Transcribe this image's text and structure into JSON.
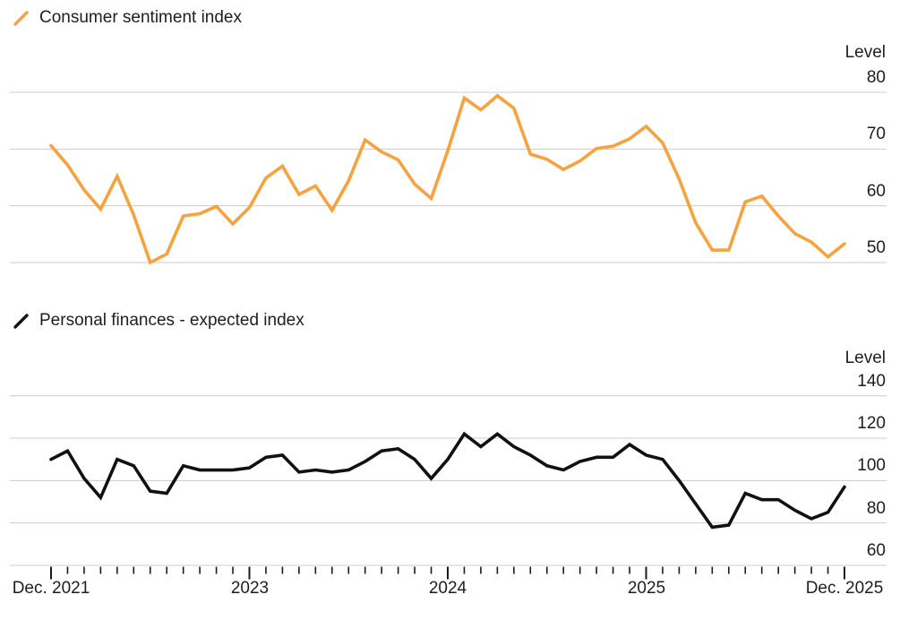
{
  "chart_data": [
    {
      "type": "line",
      "title": "Consumer sentiment index",
      "legend": {
        "label": "Consumer sentiment index",
        "marker_icon": "diagonal-line-icon",
        "color": "#F7A23C"
      },
      "ylabel": "Level",
      "y_ticks": [
        80,
        70,
        60,
        50
      ],
      "ylim": [
        47,
        83
      ],
      "grid": "horizontal",
      "legend_position": "top-left",
      "series": [
        {
          "name": "Consumer sentiment index",
          "color": "#F7A23C",
          "values": [
            70.6,
            67.2,
            62.8,
            59.4,
            65.2,
            58.4,
            50.0,
            51.5,
            58.2,
            58.6,
            59.9,
            56.8,
            59.7,
            64.9,
            67.0,
            62.0,
            63.5,
            59.2,
            64.4,
            71.6,
            69.5,
            68.1,
            63.8,
            61.3,
            69.7,
            79.0,
            76.9,
            79.4,
            77.2,
            69.1,
            68.2,
            66.4,
            67.9,
            70.1,
            70.5,
            71.8,
            74.0,
            71.1,
            64.7,
            57.0,
            52.2,
            52.2,
            60.7,
            61.7,
            58.2,
            55.1,
            53.6,
            51.0,
            53.3
          ]
        }
      ]
    },
    {
      "type": "line",
      "title": "Personal finances - expected index",
      "legend": {
        "label": "Personal finances - expected index",
        "marker_icon": "diagonal-line-icon",
        "color": "#111111"
      },
      "ylabel": "Level",
      "y_ticks": [
        140,
        120,
        100,
        80,
        60
      ],
      "ylim": [
        60,
        144
      ],
      "grid": "horizontal",
      "legend_position": "top-left",
      "series": [
        {
          "name": "Personal finances - expected index",
          "color": "#111111",
          "values": [
            110,
            114,
            101,
            92,
            110,
            107,
            95,
            94,
            107,
            105,
            105,
            105,
            106,
            111,
            112,
            104,
            105,
            104,
            105,
            109,
            114,
            115,
            110,
            101,
            110,
            122,
            116,
            122,
            116,
            112,
            107,
            105,
            109,
            111,
            111,
            117,
            112,
            110,
            100,
            89,
            78,
            79,
            94,
            91,
            91,
            86,
            82,
            85,
            97
          ]
        }
      ]
    }
  ],
  "x_axis": {
    "months": [
      "Dec 2021",
      "Jan 2022",
      "Feb 2022",
      "Mar 2022",
      "Apr 2022",
      "May 2022",
      "Jun 2022",
      "Jul 2022",
      "Aug 2022",
      "Sep 2022",
      "Oct 2022",
      "Nov 2022",
      "Dec 2022",
      "Jan 2023",
      "Feb 2023",
      "Mar 2023",
      "Apr 2023",
      "May 2023",
      "Jun 2023",
      "Jul 2023",
      "Aug 2023",
      "Sep 2023",
      "Oct 2023",
      "Nov 2023",
      "Dec 2023",
      "Jan 2024",
      "Feb 2024",
      "Mar 2024",
      "Apr 2024",
      "May 2024",
      "Jun 2024",
      "Jul 2024",
      "Aug 2024",
      "Sep 2024",
      "Oct 2024",
      "Nov 2024",
      "Dec 2024",
      "Jan 2025",
      "Feb 2025",
      "Mar 2025",
      "Apr 2025",
      "May 2025",
      "Jun 2025",
      "Jul 2025",
      "Aug 2025",
      "Sep 2025",
      "Oct 2025",
      "Nov 2025",
      "Dec 2025"
    ],
    "major_tick_indices": [
      0,
      12,
      24,
      36,
      48
    ],
    "major_tick_labels": [
      "Dec. 2021",
      "2023",
      "2024",
      "2025",
      "Dec. 2025"
    ]
  },
  "colors": {
    "gridline": "#cccccc",
    "tick": "#1a1a1a",
    "text": "#1e1e1e",
    "background": "#ffffff"
  }
}
